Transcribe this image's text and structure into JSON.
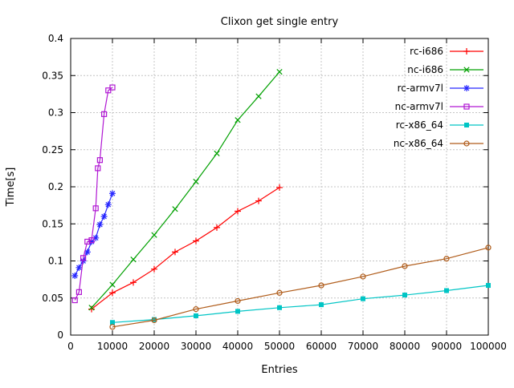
{
  "chart_data": {
    "type": "line",
    "title": "Clixon get single entry",
    "xlabel": "Entries",
    "ylabel": "Time[s]",
    "xlim": [
      0,
      100000
    ],
    "ylim": [
      0,
      0.4
    ],
    "xticks": [
      0,
      10000,
      20000,
      30000,
      40000,
      50000,
      60000,
      70000,
      80000,
      90000,
      100000
    ],
    "xticklabels": [
      "0",
      "10000",
      "20000",
      "30000",
      "40000",
      "50000",
      "60000",
      "70000",
      "80000",
      "90000",
      "100000"
    ],
    "yticks": [
      0,
      0.05,
      0.1,
      0.15,
      0.2,
      0.25,
      0.3,
      0.35,
      0.4
    ],
    "yticklabels": [
      "0",
      "0.05",
      "0.1",
      "0.15",
      "0.2",
      "0.25",
      "0.3",
      "0.35",
      "0.4"
    ],
    "grid": true,
    "legend_position": "top-right-inside",
    "background": "#ffffff",
    "series": [
      {
        "name": "rc-i686",
        "color": "#ff0000",
        "marker": "plus",
        "points": [
          [
            5000,
            0.035
          ],
          [
            10000,
            0.057
          ],
          [
            15000,
            0.071
          ],
          [
            20000,
            0.089
          ],
          [
            25000,
            0.112
          ],
          [
            30000,
            0.127
          ],
          [
            35000,
            0.145
          ],
          [
            40000,
            0.167
          ],
          [
            45000,
            0.181
          ],
          [
            50000,
            0.199
          ]
        ]
      },
      {
        "name": "nc-i686",
        "color": "#00a000",
        "marker": "cross",
        "points": [
          [
            5000,
            0.037
          ],
          [
            10000,
            0.068
          ],
          [
            15000,
            0.102
          ],
          [
            20000,
            0.135
          ],
          [
            25000,
            0.17
          ],
          [
            30000,
            0.207
          ],
          [
            35000,
            0.245
          ],
          [
            40000,
            0.29
          ],
          [
            45000,
            0.322
          ],
          [
            50000,
            0.355
          ]
        ]
      },
      {
        "name": "rc-armv7l",
        "color": "#2727ff",
        "marker": "asterisk",
        "points": [
          [
            1000,
            0.08
          ],
          [
            2000,
            0.091
          ],
          [
            3000,
            0.1
          ],
          [
            4000,
            0.112
          ],
          [
            5000,
            0.126
          ],
          [
            6000,
            0.131
          ],
          [
            7000,
            0.149
          ],
          [
            8000,
            0.16
          ],
          [
            9000,
            0.176
          ],
          [
            10000,
            0.191
          ]
        ]
      },
      {
        "name": "nc-armv7l",
        "color": "#b017d3",
        "marker": "square-open",
        "points": [
          [
            1000,
            0.047
          ],
          [
            2000,
            0.058
          ],
          [
            3000,
            0.104
          ],
          [
            4000,
            0.126
          ],
          [
            5000,
            0.128
          ],
          [
            6000,
            0.171
          ],
          [
            6500,
            0.225
          ],
          [
            7000,
            0.236
          ],
          [
            8000,
            0.298
          ],
          [
            9000,
            0.33
          ],
          [
            10000,
            0.334
          ]
        ]
      },
      {
        "name": "rc-x86_64",
        "color": "#00c5c5",
        "marker": "square-filled",
        "points": [
          [
            10000,
            0.017
          ],
          [
            20000,
            0.021
          ],
          [
            30000,
            0.026
          ],
          [
            40000,
            0.032
          ],
          [
            50000,
            0.037
          ],
          [
            60000,
            0.041
          ],
          [
            70000,
            0.049
          ],
          [
            80000,
            0.054
          ],
          [
            90000,
            0.06
          ],
          [
            100000,
            0.067
          ]
        ]
      },
      {
        "name": "nc-x86_64",
        "color": "#b05c1a",
        "marker": "circle-open",
        "points": [
          [
            10000,
            0.011
          ],
          [
            20000,
            0.02
          ],
          [
            30000,
            0.035
          ],
          [
            40000,
            0.046
          ],
          [
            50000,
            0.057
          ],
          [
            60000,
            0.067
          ],
          [
            70000,
            0.079
          ],
          [
            80000,
            0.093
          ],
          [
            90000,
            0.103
          ],
          [
            100000,
            0.118
          ]
        ]
      }
    ]
  }
}
